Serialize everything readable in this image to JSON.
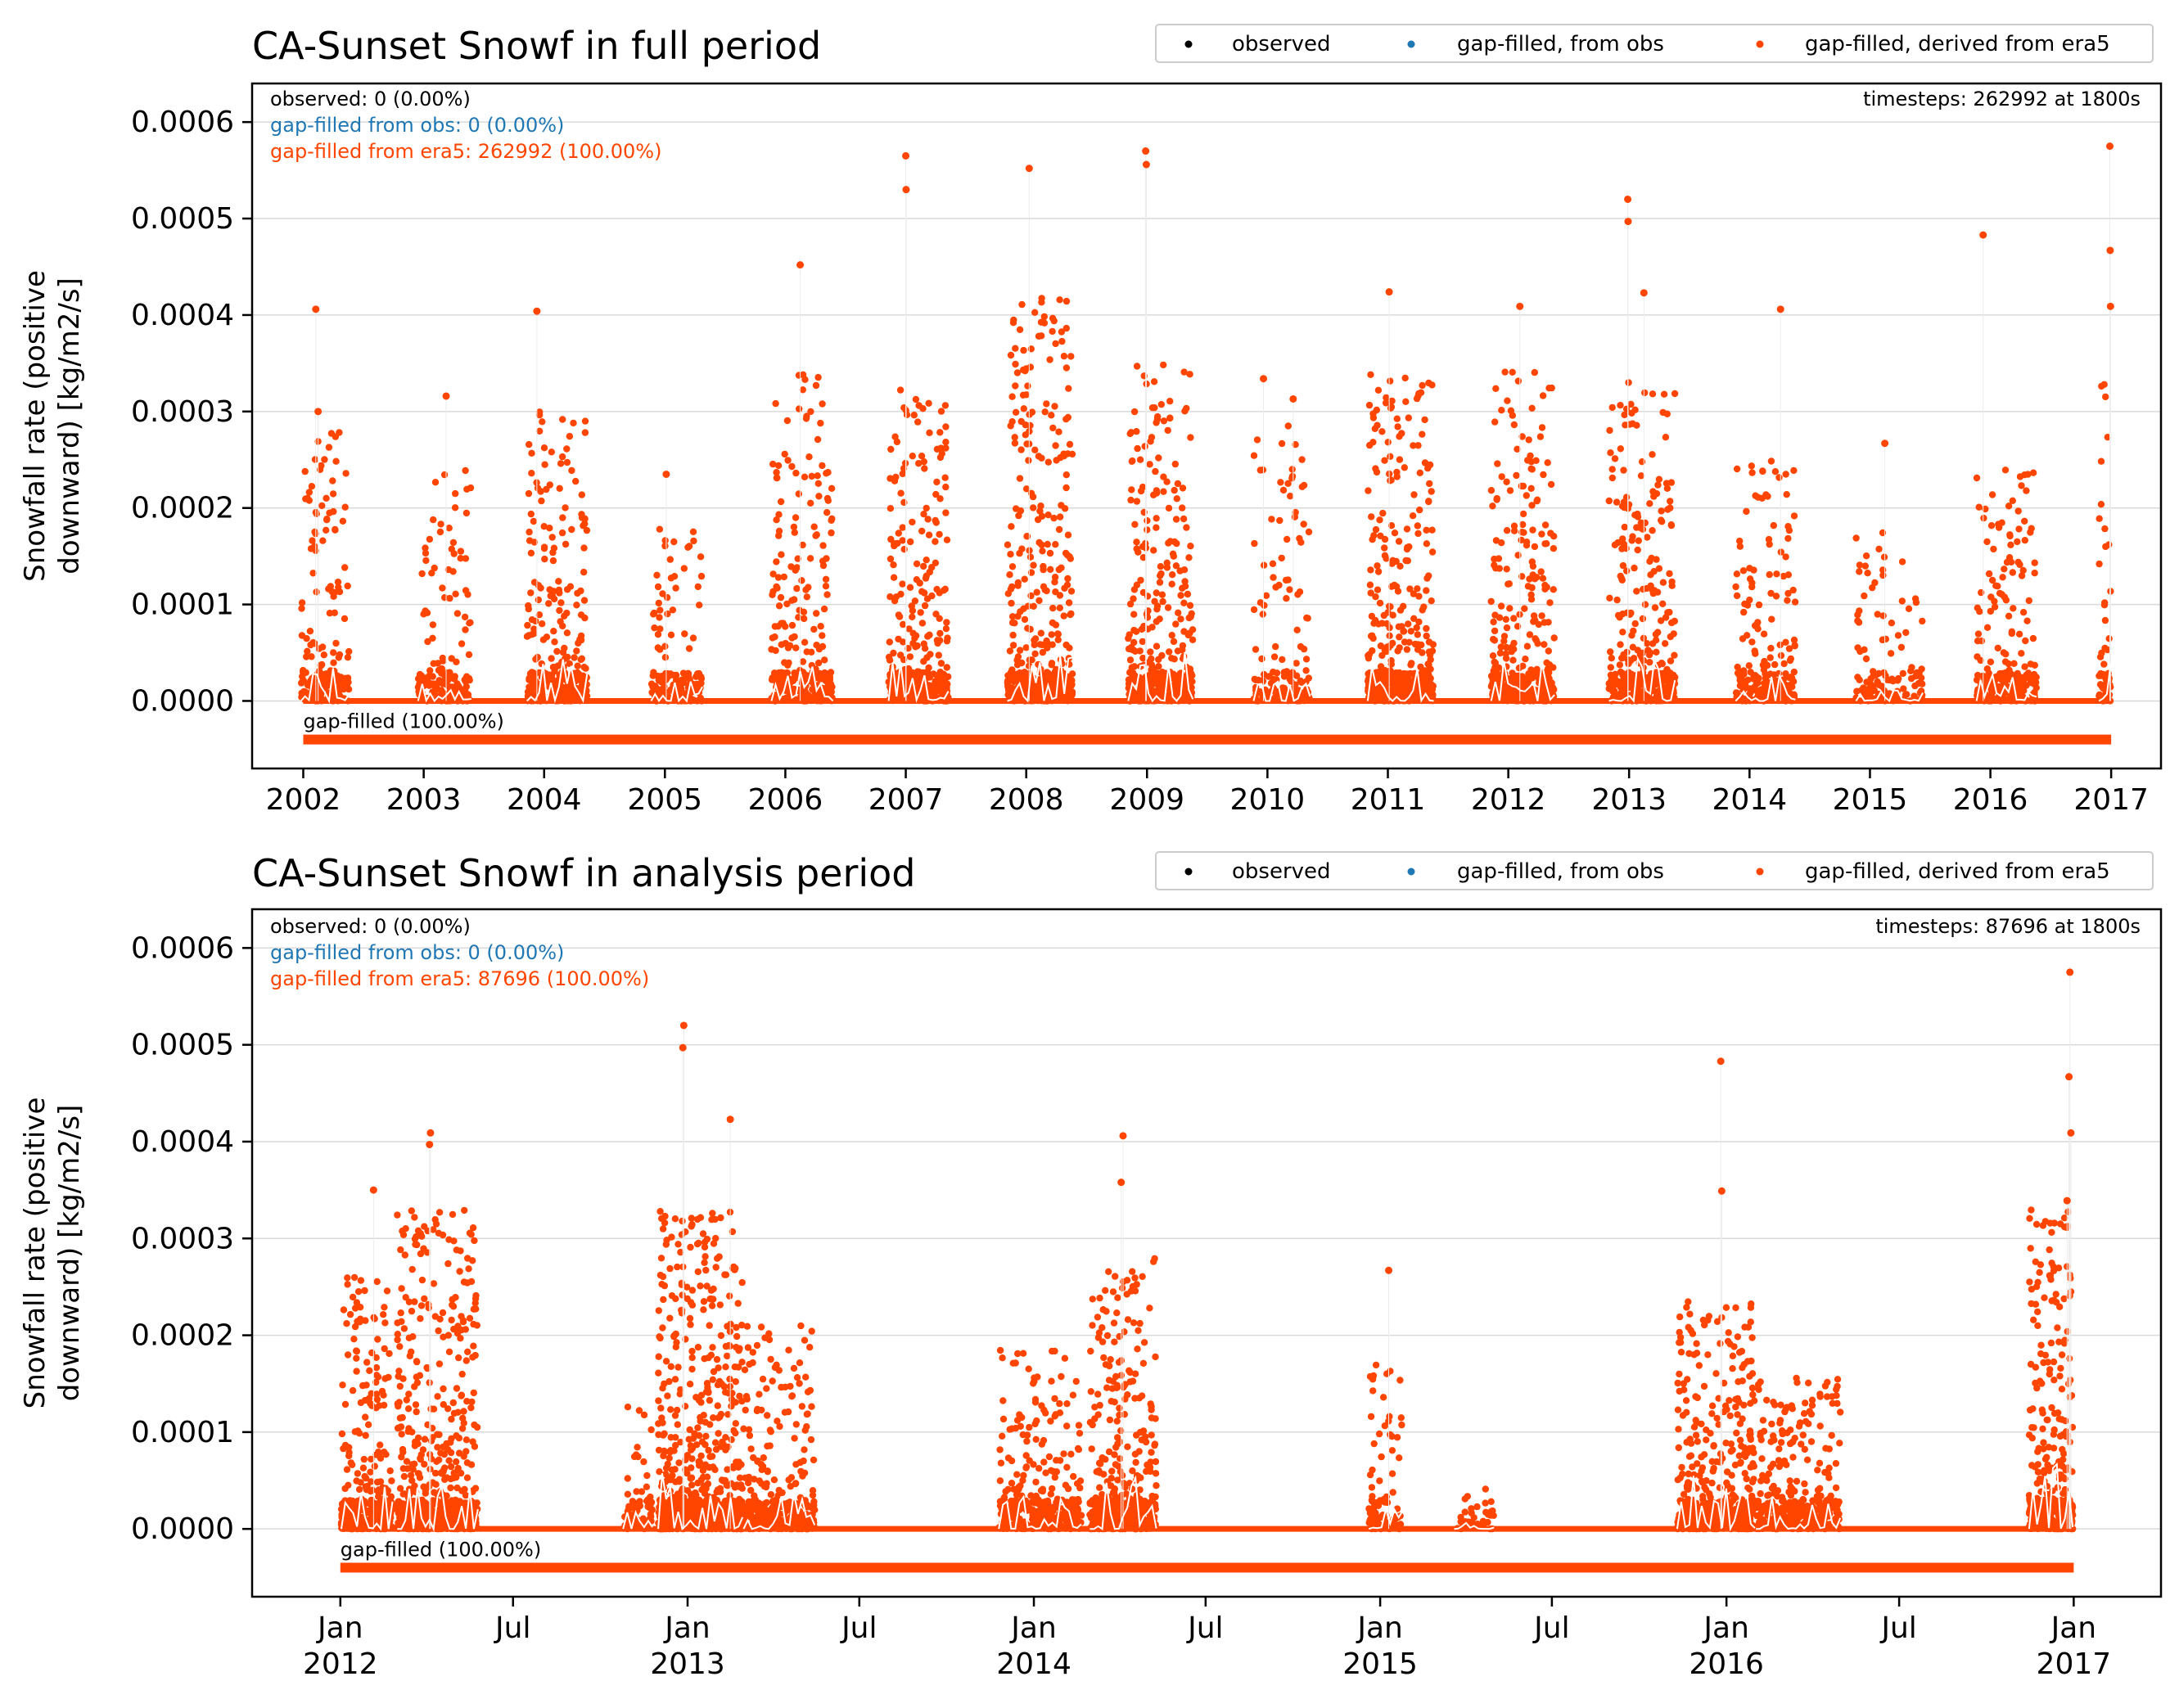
{
  "colors": {
    "observed": "#000000",
    "gapfilled_obs": "#1f77b4",
    "gapfilled_era5": "#ff4500",
    "mean_line": "#ffffff",
    "grid": "#d9d9d9",
    "axis": "#000000"
  },
  "legend_labels": [
    "observed",
    "gap-filled, from obs",
    "gap-filled, derived from era5"
  ],
  "chart_data": [
    {
      "type": "scatter",
      "title": "CA-Sunset Snowf in full period",
      "ylabel": "Snowfall rate (positive\ndownward) [kg/m2/s]",
      "ylim": [
        -7e-05,
        0.00064
      ],
      "yticks": [
        0.0,
        0.0001,
        0.0002,
        0.0003,
        0.0004,
        0.0005,
        0.0006
      ],
      "ytick_labels": [
        "0.0000",
        "0.0001",
        "0.0002",
        "0.0003",
        "0.0004",
        "0.0005",
        "0.0006"
      ],
      "xlim": [
        "2001-07-30",
        "2017-06-01"
      ],
      "xticks": [
        "2002-01-01",
        "2003-01-01",
        "2004-01-01",
        "2005-01-01",
        "2006-01-01",
        "2007-01-01",
        "2008-01-01",
        "2009-01-01",
        "2010-01-01",
        "2011-01-01",
        "2012-01-01",
        "2013-01-01",
        "2014-01-01",
        "2015-01-01",
        "2016-01-01",
        "2017-01-01"
      ],
      "xtick_labels": [
        "2002",
        "2003",
        "2004",
        "2005",
        "2006",
        "2007",
        "2008",
        "2009",
        "2010",
        "2011",
        "2012",
        "2013",
        "2014",
        "2015",
        "2016",
        "2017"
      ],
      "stats": {
        "observed": "observed: 0 (0.00%)",
        "from_obs": "gap-filled from obs: 0 (0.00%)",
        "from_era5": "gap-filled from era5: 262992 (100.00%)",
        "timesteps": "timesteps: 262992 at 1800s"
      },
      "gap_bar": {
        "label": "gap-filled (100.00%)",
        "start": "2002-01-01",
        "end": "2017-01-01",
        "value": -4e-05
      },
      "peaks": [
        {
          "date": "2002-02-08",
          "value": 0.000406
        },
        {
          "date": "2002-02-15",
          "value": 0.0003
        },
        {
          "date": "2003-03-10",
          "value": 0.000316
        },
        {
          "date": "2003-12-10",
          "value": 0.000404
        },
        {
          "date": "2005-01-05",
          "value": 0.000235
        },
        {
          "date": "2006-02-15",
          "value": 0.000452
        },
        {
          "date": "2007-01-01",
          "value": 0.000565
        },
        {
          "date": "2007-01-02",
          "value": 0.00053
        },
        {
          "date": "2008-01-10",
          "value": 0.000552
        },
        {
          "date": "2008-12-28",
          "value": 0.00057
        },
        {
          "date": "2008-12-30",
          "value": 0.000556
        },
        {
          "date": "2009-12-20",
          "value": 0.000334
        },
        {
          "date": "2010-03-20",
          "value": 0.000313
        },
        {
          "date": "2011-01-05",
          "value": 0.000424
        },
        {
          "date": "2012-02-05",
          "value": 0.000409
        },
        {
          "date": "2012-12-28",
          "value": 0.00052
        },
        {
          "date": "2012-12-29",
          "value": 0.000497
        },
        {
          "date": "2013-02-15",
          "value": 0.000423
        },
        {
          "date": "2014-04-05",
          "value": 0.000406
        },
        {
          "date": "2015-02-15",
          "value": 0.000267
        },
        {
          "date": "2015-12-10",
          "value": 0.000483
        },
        {
          "date": "2016-12-28",
          "value": 0.000575
        },
        {
          "date": "2016-12-29",
          "value": 0.000467
        },
        {
          "date": "2016-12-30",
          "value": 0.000409
        }
      ],
      "seasons": [
        {
          "start": "2001-12-25",
          "end": "2002-05-20",
          "max": 0.00028,
          "dens": 1.0
        },
        {
          "start": "2002-12-15",
          "end": "2003-05-25",
          "max": 0.00024,
          "dens": 0.7
        },
        {
          "start": "2003-11-10",
          "end": "2004-05-10",
          "max": 0.00032,
          "dens": 1.3
        },
        {
          "start": "2004-11-20",
          "end": "2005-04-25",
          "max": 0.00018,
          "dens": 0.7
        },
        {
          "start": "2005-11-20",
          "end": "2006-05-25",
          "max": 0.00034,
          "dens": 1.1
        },
        {
          "start": "2006-11-10",
          "end": "2007-05-10",
          "max": 0.00033,
          "dens": 1.4
        },
        {
          "start": "2007-11-05",
          "end": "2008-05-20",
          "max": 0.00042,
          "dens": 1.8
        },
        {
          "start": "2008-11-05",
          "end": "2009-05-20",
          "max": 0.00035,
          "dens": 1.5
        },
        {
          "start": "2009-11-20",
          "end": "2010-05-10",
          "max": 0.00029,
          "dens": 0.6
        },
        {
          "start": "2010-11-01",
          "end": "2011-05-20",
          "max": 0.00034,
          "dens": 1.6
        },
        {
          "start": "2011-11-10",
          "end": "2012-05-20",
          "max": 0.00035,
          "dens": 1.5
        },
        {
          "start": "2012-11-01",
          "end": "2013-05-20",
          "max": 0.00033,
          "dens": 1.3
        },
        {
          "start": "2013-11-20",
          "end": "2014-05-20",
          "max": 0.00025,
          "dens": 0.8
        },
        {
          "start": "2014-11-20",
          "end": "2015-06-10",
          "max": 0.00018,
          "dens": 0.4
        },
        {
          "start": "2015-11-20",
          "end": "2016-05-20",
          "max": 0.00024,
          "dens": 0.9
        },
        {
          "start": "2016-11-25",
          "end": "2016-12-31",
          "max": 0.00034,
          "dens": 1.2
        }
      ]
    },
    {
      "type": "scatter",
      "title": "CA-Sunset Snowf in analysis period",
      "ylabel": "Snowfall rate (positive\ndownward) [kg/m2/s]",
      "ylim": [
        -7e-05,
        0.00064
      ],
      "yticks": [
        0.0,
        0.0001,
        0.0002,
        0.0003,
        0.0004,
        0.0005,
        0.0006
      ],
      "ytick_labels": [
        "0.0000",
        "0.0001",
        "0.0002",
        "0.0003",
        "0.0004",
        "0.0005",
        "0.0006"
      ],
      "xlim": [
        "2011-09-30",
        "2017-04-03"
      ],
      "xticks": [
        "2012-01-01",
        "2012-07-01",
        "2013-01-01",
        "2013-07-01",
        "2014-01-01",
        "2014-07-01",
        "2015-01-01",
        "2015-07-01",
        "2016-01-01",
        "2016-07-01",
        "2017-01-01"
      ],
      "xtick_labels": [
        "Jan\n2012",
        "Jul",
        "Jan\n2013",
        "Jul",
        "Jan\n2014",
        "Jul",
        "Jan\n2015",
        "Jul",
        "Jan\n2016",
        "Jul",
        "Jan\n2017"
      ],
      "stats": {
        "observed": "observed: 0 (0.00%)",
        "from_obs": "gap-filled from obs: 0 (0.00%)",
        "from_era5": "gap-filled from era5: 87696 (100.00%)",
        "timesteps": "timesteps: 87696 at 1800s"
      },
      "gap_bar": {
        "label": "gap-filled (100.00%)",
        "start": "2012-01-01",
        "end": "2017-01-01",
        "value": -4e-05
      },
      "peaks": [
        {
          "date": "2012-02-05",
          "value": 0.00035
        },
        {
          "date": "2012-04-05",
          "value": 0.000409
        },
        {
          "date": "2012-04-04",
          "value": 0.000397
        },
        {
          "date": "2012-12-28",
          "value": 0.00052
        },
        {
          "date": "2012-12-27",
          "value": 0.000497
        },
        {
          "date": "2013-02-15",
          "value": 0.000423
        },
        {
          "date": "2014-04-05",
          "value": 0.000406
        },
        {
          "date": "2014-04-03",
          "value": 0.000358
        },
        {
          "date": "2015-01-10",
          "value": 0.000267
        },
        {
          "date": "2015-12-26",
          "value": 0.000483
        },
        {
          "date": "2015-12-27",
          "value": 0.000349
        },
        {
          "date": "2016-12-28",
          "value": 0.000575
        },
        {
          "date": "2016-12-27",
          "value": 0.000467
        },
        {
          "date": "2016-12-29",
          "value": 0.000409
        },
        {
          "date": "2016-12-25",
          "value": 0.000339
        }
      ],
      "seasons": [
        {
          "start": "2012-01-02",
          "end": "2012-02-25",
          "max": 0.00026,
          "dens": 1.6
        },
        {
          "start": "2012-03-01",
          "end": "2012-05-25",
          "max": 0.00033,
          "dens": 2.0
        },
        {
          "start": "2012-10-25",
          "end": "2012-11-25",
          "max": 0.00013,
          "dens": 0.5
        },
        {
          "start": "2012-12-01",
          "end": "2013-02-28",
          "max": 0.00033,
          "dens": 2.2
        },
        {
          "start": "2013-03-01",
          "end": "2013-05-15",
          "max": 0.00021,
          "dens": 1.1
        },
        {
          "start": "2013-11-25",
          "end": "2014-02-20",
          "max": 0.00019,
          "dens": 1.0
        },
        {
          "start": "2014-03-01",
          "end": "2014-05-10",
          "max": 0.00028,
          "dens": 1.6
        },
        {
          "start": "2014-12-20",
          "end": "2015-01-25",
          "max": 0.00017,
          "dens": 0.6
        },
        {
          "start": "2015-03-20",
          "end": "2015-05-01",
          "max": 5e-05,
          "dens": 0.2
        },
        {
          "start": "2015-11-10",
          "end": "2016-01-31",
          "max": 0.00024,
          "dens": 1.6
        },
        {
          "start": "2016-02-01",
          "end": "2016-04-30",
          "max": 0.00016,
          "dens": 1.0
        },
        {
          "start": "2016-11-15",
          "end": "2016-12-31",
          "max": 0.00033,
          "dens": 2.2
        }
      ]
    }
  ]
}
